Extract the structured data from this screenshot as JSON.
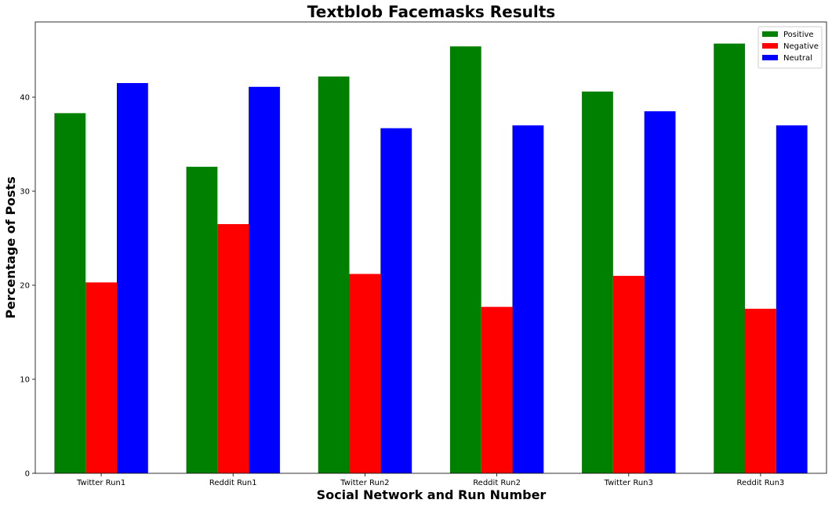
{
  "chart_data": {
    "type": "bar",
    "title": "Textblob Facemasks Results",
    "xlabel": "Social Network and Run Number",
    "ylabel": "Percentage of Posts",
    "categories": [
      "Twitter Run1",
      "Reddit Run1",
      "Twitter Run2",
      "Reddit Run2",
      "Twitter Run3",
      "Reddit Run3"
    ],
    "series": [
      {
        "name": "Positive",
        "color": "#008000",
        "values": [
          38.3,
          32.6,
          42.2,
          45.4,
          40.6,
          45.7
        ]
      },
      {
        "name": "Negative",
        "color": "#ff0000",
        "values": [
          20.3,
          26.5,
          21.2,
          17.7,
          21.0,
          17.5
        ]
      },
      {
        "name": "Neutral",
        "color": "#0000ff",
        "values": [
          41.5,
          41.1,
          36.7,
          37.0,
          38.5,
          37.0
        ]
      }
    ],
    "yticks": [
      0,
      10,
      20,
      30,
      40
    ],
    "ylim": [
      0,
      48
    ],
    "grid": false,
    "legend_position": "top-right"
  }
}
